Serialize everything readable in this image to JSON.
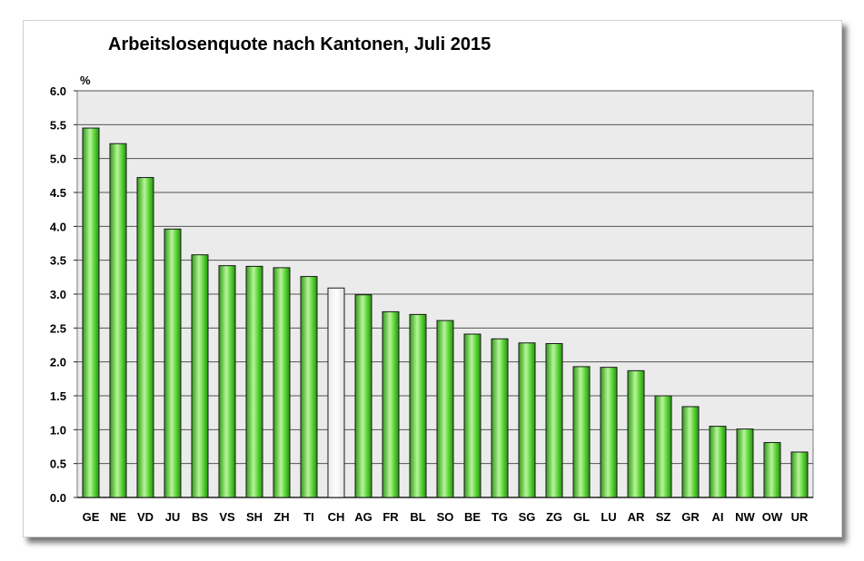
{
  "chart_data": {
    "type": "bar",
    "title": "Arbeitslosenquote nach Kantonen, Juli 2015",
    "ylabel": "%",
    "xlabel": "",
    "ylim": [
      0,
      6
    ],
    "yticks": [
      "0.0",
      "0.5",
      "1.0",
      "1.5",
      "2.0",
      "2.5",
      "3.0",
      "3.5",
      "4.0",
      "4.5",
      "5.0",
      "5.5",
      "6.0"
    ],
    "grid": true,
    "categories": [
      "GE",
      "NE",
      "VD",
      "JU",
      "BS",
      "VS",
      "SH",
      "ZH",
      "TI",
      "CH",
      "AG",
      "FR",
      "BL",
      "SO",
      "BE",
      "TG",
      "SG",
      "ZG",
      "GL",
      "LU",
      "AR",
      "SZ",
      "GR",
      "AI",
      "NW",
      "OW",
      "UR"
    ],
    "values": [
      5.45,
      5.22,
      4.72,
      3.96,
      3.58,
      3.42,
      3.41,
      3.39,
      3.26,
      3.09,
      2.99,
      2.74,
      2.7,
      2.61,
      2.41,
      2.34,
      2.28,
      2.27,
      1.93,
      1.92,
      1.87,
      1.5,
      1.34,
      1.05,
      1.01,
      0.81,
      0.67
    ],
    "highlight_category": "CH",
    "colors": {
      "bar": "#46c82a",
      "bar_highlight": "#ffffff",
      "plot_background": "#ebebeb",
      "grid": "#555555"
    }
  }
}
